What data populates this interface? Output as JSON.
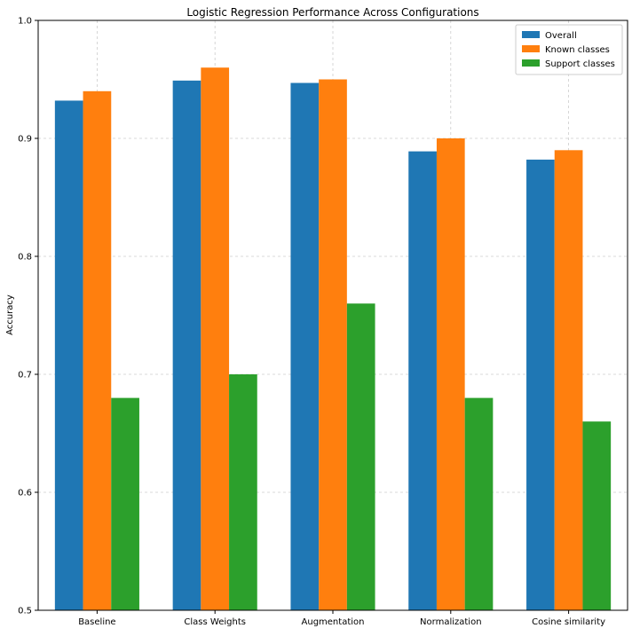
{
  "chart_data": {
    "type": "bar",
    "title": "Logistic Regression Performance Across Configurations",
    "xlabel": "",
    "ylabel": "Accuracy",
    "ylim": [
      0.5,
      1.0
    ],
    "yticks": [
      0.5,
      0.6,
      0.7,
      0.8,
      0.9,
      1.0
    ],
    "ytick_labels": [
      "0.5",
      "0.6",
      "0.7",
      "0.8",
      "0.9",
      "1.0"
    ],
    "grid": true,
    "legend_position": "top-right",
    "categories": [
      "Baseline",
      "Class Weights",
      "Augmentation",
      "Normalization",
      "Cosine similarity"
    ],
    "series": [
      {
        "name": "Overall",
        "color": "#1f77b4",
        "values": [
          0.932,
          0.949,
          0.947,
          0.889,
          0.882
        ]
      },
      {
        "name": "Known classes",
        "color": "#ff7f0e",
        "values": [
          0.94,
          0.96,
          0.95,
          0.9,
          0.89
        ]
      },
      {
        "name": "Support classes",
        "color": "#2ca02c",
        "values": [
          0.68,
          0.7,
          0.76,
          0.68,
          0.66
        ]
      }
    ]
  }
}
